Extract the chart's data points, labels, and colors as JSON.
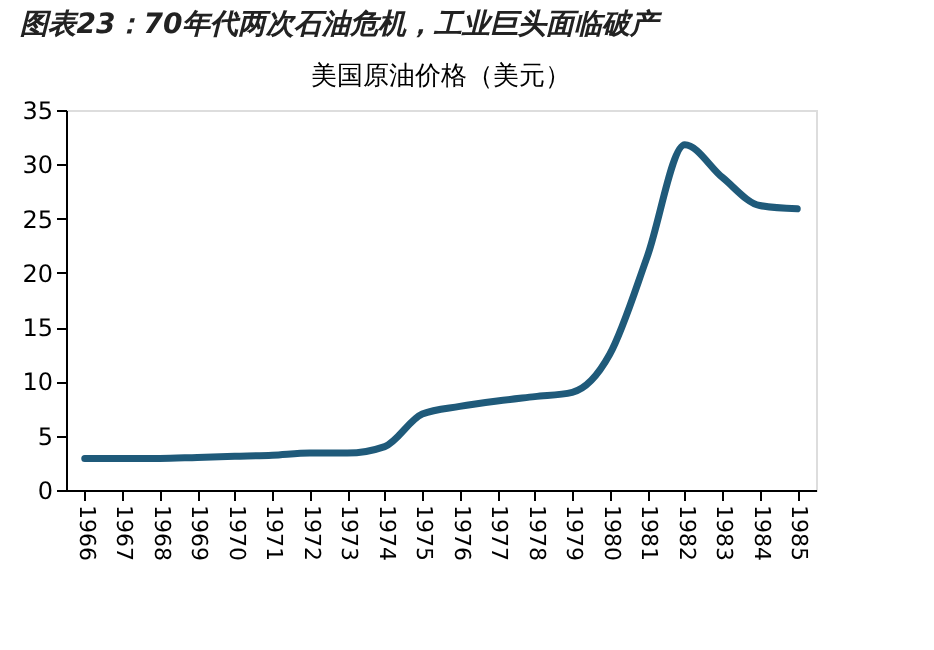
{
  "chart_data": {
    "type": "line",
    "title": "图表23：70年代两次石油危机，工业巨头面临破产",
    "subtitle": "美国原油价格（美元）",
    "categories": [
      "1966",
      "1967",
      "1968",
      "1969",
      "1970",
      "1971",
      "1972",
      "1973",
      "1974",
      "1975",
      "1976",
      "1977",
      "1978",
      "1979",
      "1980",
      "1981",
      "1982",
      "1983",
      "1984",
      "1985"
    ],
    "series": [
      {
        "color": "#1f5a7a",
        "values": [
          2.9,
          2.9,
          2.9,
          3.0,
          3.1,
          3.2,
          3.4,
          3.4,
          4.0,
          7.0,
          7.7,
          8.2,
          8.6,
          9.0,
          12.5,
          21.5,
          31.8,
          28.8,
          26.2,
          25.9
        ]
      }
    ],
    "ylim": [
      0,
      35
    ],
    "yticks": [
      0,
      5,
      10,
      15,
      20,
      25,
      30,
      35
    ],
    "grid": false,
    "marker": "none",
    "line_style": "solid"
  }
}
